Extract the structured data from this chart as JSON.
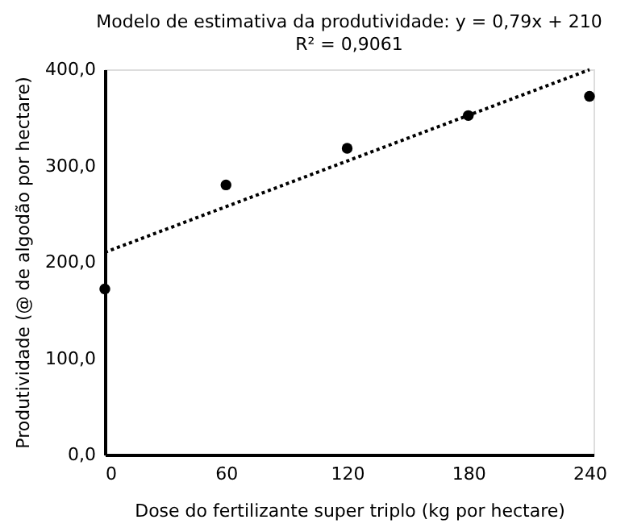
{
  "chart_data": {
    "type": "scatter",
    "title": "Modelo de estimativa da produtividade: y = 0,79x + 210",
    "subtitle": "R² = 0,9061",
    "xlabel": "Dose do fertilizante super triplo (kg por hectare)",
    "ylabel": "Produtividade (@ de algodão por hectare)",
    "x": [
      0,
      60,
      120,
      180,
      240
    ],
    "series": [
      {
        "color": "#000000",
        "marker": "circle",
        "values": [
          172,
          280,
          318,
          352,
          372
        ]
      },
      {
        "type": "line",
        "color": "#000000",
        "line_style": "dotted",
        "marker": "none",
        "x": [
          0,
          240
        ],
        "values": [
          210,
          399.6
        ]
      }
    ],
    "xlim": [
      0,
      242
    ],
    "xticks": [
      0,
      60,
      120,
      180,
      240
    ],
    "ylim": [
      0,
      400
    ],
    "yticks": [
      {
        "value": 0,
        "label": "0,0"
      },
      {
        "value": 100,
        "label": "100,0"
      },
      {
        "value": 200,
        "label": "200,0"
      },
      {
        "value": 300,
        "label": "300,0"
      },
      {
        "value": 400,
        "label": "400,0"
      }
    ],
    "grid": false
  }
}
